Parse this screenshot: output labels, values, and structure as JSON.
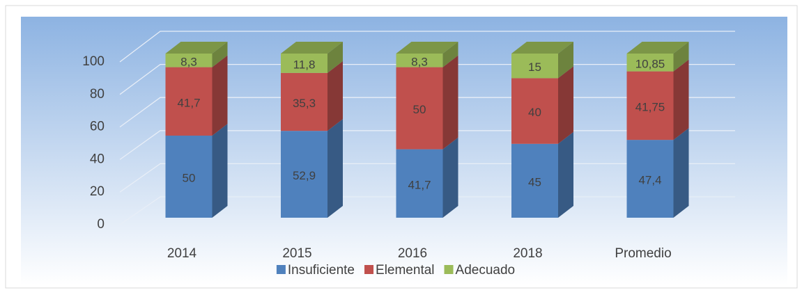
{
  "chart_data": {
    "type": "bar3d_stacked",
    "categories": [
      "2014",
      "2015",
      "2016",
      "2018",
      "Promedio"
    ],
    "series": [
      {
        "name": "Insuficiente",
        "color": "#4f81bd",
        "values": [
          50,
          52.9,
          41.7,
          45,
          47.4
        ],
        "value_labels": [
          "50",
          "52,9",
          "41,7",
          "45",
          "47,4"
        ]
      },
      {
        "name": "Elemental",
        "color": "#c0504d",
        "values": [
          41.7,
          35.3,
          50,
          40,
          41.75
        ],
        "value_labels": [
          "41,7",
          "35,3",
          "50",
          "40",
          "41,75"
        ]
      },
      {
        "name": "Adecuado",
        "color": "#9bbb59",
        "values": [
          8.3,
          11.8,
          8.3,
          15,
          10.85
        ],
        "value_labels": [
          "8,3",
          "11,8",
          "8,3",
          "15",
          "10,85"
        ]
      }
    ],
    "ylim": [
      0,
      100
    ],
    "yticks": [
      0,
      20,
      40,
      60,
      80,
      100
    ],
    "grid": true,
    "legend": "bottom"
  }
}
